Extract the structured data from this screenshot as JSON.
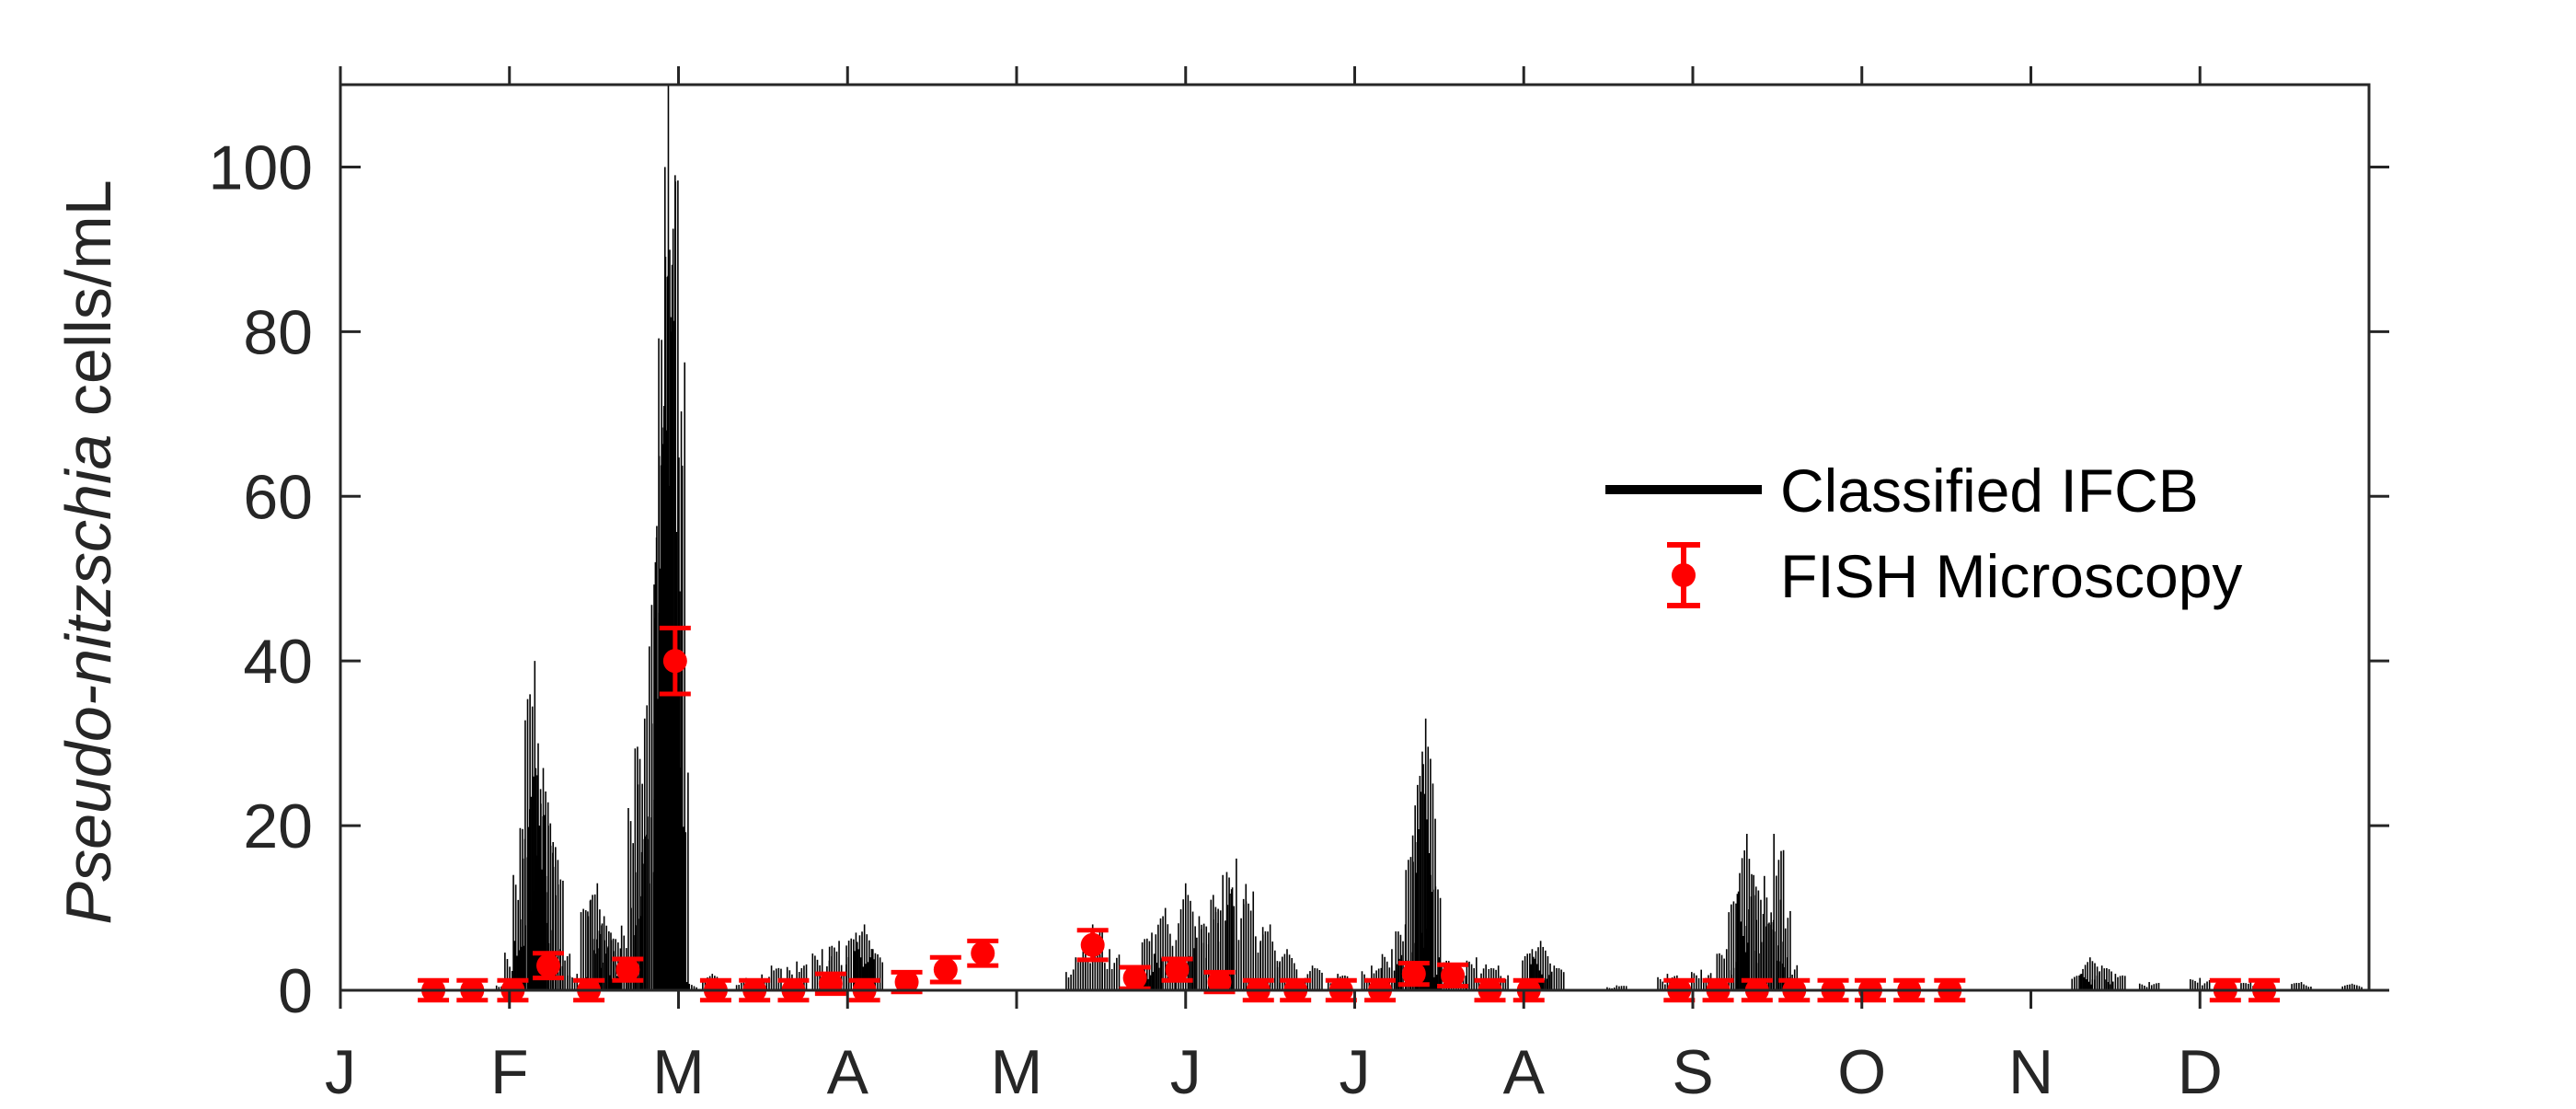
{
  "colors": {
    "ifcb": "#000000",
    "fish": "#ff0000",
    "axis": "#262626",
    "background": "#ffffff"
  },
  "chart_data": {
    "type": "line",
    "title": "",
    "xlabel": "",
    "ylabel_italic": "Pseudo-nitzschia",
    "ylabel_rest": " cells/mL",
    "x_unit": "month of year",
    "xlim": [
      0,
      12
    ],
    "ylim": [
      0,
      110
    ],
    "x_ticks": [
      {
        "pos": 0,
        "label": "J"
      },
      {
        "pos": 1,
        "label": "F"
      },
      {
        "pos": 2,
        "label": "M"
      },
      {
        "pos": 3,
        "label": "A"
      },
      {
        "pos": 4,
        "label": "M"
      },
      {
        "pos": 5,
        "label": "J"
      },
      {
        "pos": 6,
        "label": "J"
      },
      {
        "pos": 7,
        "label": "A"
      },
      {
        "pos": 8,
        "label": "S"
      },
      {
        "pos": 9,
        "label": "O"
      },
      {
        "pos": 10,
        "label": "N"
      },
      {
        "pos": 11,
        "label": "D"
      }
    ],
    "y_ticks": [
      0,
      20,
      40,
      60,
      80,
      100
    ],
    "grid": false,
    "legend": {
      "position": "right-center",
      "entries": [
        {
          "label": "Classified IFCB",
          "style": "line"
        },
        {
          "label": "FISH Microscopy",
          "style": "errorbar-marker"
        }
      ]
    },
    "series": [
      {
        "name": "Classified IFCB",
        "kind": "spikes",
        "peaks": [
          {
            "x": 0.98,
            "y": 1
          },
          {
            "x": 1.03,
            "y": 6
          },
          {
            "x": 1.08,
            "y": 16
          },
          {
            "x": 1.12,
            "y": 22
          },
          {
            "x": 1.15,
            "y": 40
          },
          {
            "x": 1.17,
            "y": 30
          },
          {
            "x": 1.2,
            "y": 27
          },
          {
            "x": 1.23,
            "y": 20
          },
          {
            "x": 1.26,
            "y": 15
          },
          {
            "x": 1.3,
            "y": 5
          },
          {
            "x": 1.4,
            "y": 2
          },
          {
            "x": 1.48,
            "y": 11
          },
          {
            "x": 1.52,
            "y": 13
          },
          {
            "x": 1.56,
            "y": 9
          },
          {
            "x": 1.6,
            "y": 7
          },
          {
            "x": 1.65,
            "y": 3
          },
          {
            "x": 1.72,
            "y": 10
          },
          {
            "x": 1.76,
            "y": 25
          },
          {
            "x": 1.8,
            "y": 33
          },
          {
            "x": 1.84,
            "y": 21
          },
          {
            "x": 1.87,
            "y": 55
          },
          {
            "x": 1.9,
            "y": 79
          },
          {
            "x": 1.92,
            "y": 100
          },
          {
            "x": 1.94,
            "y": 110
          },
          {
            "x": 1.96,
            "y": 80
          },
          {
            "x": 1.98,
            "y": 99
          },
          {
            "x": 2.0,
            "y": 45
          },
          {
            "x": 2.05,
            "y": 1
          },
          {
            "x": 2.2,
            "y": 2
          },
          {
            "x": 2.4,
            "y": 1.5
          },
          {
            "x": 2.55,
            "y": 3
          },
          {
            "x": 2.7,
            "y": 3.5
          },
          {
            "x": 2.85,
            "y": 5
          },
          {
            "x": 2.95,
            "y": 6
          },
          {
            "x": 3.05,
            "y": 7
          },
          {
            "x": 3.1,
            "y": 8
          },
          {
            "x": 3.15,
            "y": 5
          },
          {
            "x": 4.35,
            "y": 4
          },
          {
            "x": 4.45,
            "y": 8
          },
          {
            "x": 4.55,
            "y": 5
          },
          {
            "x": 4.75,
            "y": 3
          },
          {
            "x": 4.8,
            "y": 7
          },
          {
            "x": 4.88,
            "y": 10
          },
          {
            "x": 5.0,
            "y": 13
          },
          {
            "x": 5.08,
            "y": 9
          },
          {
            "x": 5.15,
            "y": 11
          },
          {
            "x": 5.22,
            "y": 14
          },
          {
            "x": 5.3,
            "y": 16
          },
          {
            "x": 5.4,
            "y": 12
          },
          {
            "x": 5.5,
            "y": 8
          },
          {
            "x": 5.6,
            "y": 5
          },
          {
            "x": 5.75,
            "y": 3
          },
          {
            "x": 5.9,
            "y": 2
          },
          {
            "x": 6.1,
            "y": 3
          },
          {
            "x": 6.22,
            "y": 5
          },
          {
            "x": 6.3,
            "y": 8
          },
          {
            "x": 6.36,
            "y": 18
          },
          {
            "x": 6.4,
            "y": 29
          },
          {
            "x": 6.42,
            "y": 33
          },
          {
            "x": 6.45,
            "y": 14
          },
          {
            "x": 6.5,
            "y": 4
          },
          {
            "x": 6.6,
            "y": 2
          },
          {
            "x": 6.72,
            "y": 4
          },
          {
            "x": 6.85,
            "y": 3
          },
          {
            "x": 7.05,
            "y": 5
          },
          {
            "x": 7.1,
            "y": 6
          },
          {
            "x": 7.18,
            "y": 3
          },
          {
            "x": 7.55,
            "y": 0.6
          },
          {
            "x": 7.85,
            "y": 2
          },
          {
            "x": 8.05,
            "y": 2.5
          },
          {
            "x": 8.2,
            "y": 5
          },
          {
            "x": 8.27,
            "y": 12
          },
          {
            "x": 8.32,
            "y": 19
          },
          {
            "x": 8.36,
            "y": 14
          },
          {
            "x": 8.42,
            "y": 9
          },
          {
            "x": 8.48,
            "y": 19
          },
          {
            "x": 8.52,
            "y": 11
          },
          {
            "x": 8.56,
            "y": 4
          },
          {
            "x": 8.6,
            "y": 1
          },
          {
            "x": 10.3,
            "y": 2
          },
          {
            "x": 10.35,
            "y": 4
          },
          {
            "x": 10.42,
            "y": 3
          },
          {
            "x": 10.5,
            "y": 2
          },
          {
            "x": 10.7,
            "y": 1
          },
          {
            "x": 11.0,
            "y": 1.5
          },
          {
            "x": 11.3,
            "y": 1
          },
          {
            "x": 11.6,
            "y": 1
          },
          {
            "x": 11.9,
            "y": 0.8
          }
        ]
      },
      {
        "name": "FISH Microscopy",
        "kind": "errorbar",
        "points": [
          {
            "x": 0.55,
            "y": 0,
            "err": 1.2
          },
          {
            "x": 0.78,
            "y": 0,
            "err": 1.2
          },
          {
            "x": 1.02,
            "y": 0,
            "err": 1.2
          },
          {
            "x": 1.23,
            "y": 3,
            "err": 1.5
          },
          {
            "x": 1.47,
            "y": 0,
            "err": 1.2
          },
          {
            "x": 1.7,
            "y": 2.5,
            "err": 1.3
          },
          {
            "x": 1.98,
            "y": 40,
            "err": 4
          },
          {
            "x": 2.22,
            "y": 0,
            "err": 1.2
          },
          {
            "x": 2.45,
            "y": 0,
            "err": 1.2
          },
          {
            "x": 2.68,
            "y": 0,
            "err": 1.2
          },
          {
            "x": 2.9,
            "y": 0.8,
            "err": 1.2
          },
          {
            "x": 3.1,
            "y": 0,
            "err": 1.2
          },
          {
            "x": 3.35,
            "y": 1,
            "err": 1.2
          },
          {
            "x": 3.58,
            "y": 2.5,
            "err": 1.5
          },
          {
            "x": 3.8,
            "y": 4.5,
            "err": 1.5
          },
          {
            "x": 4.45,
            "y": 5.5,
            "err": 1.8
          },
          {
            "x": 4.7,
            "y": 1.5,
            "err": 1.3
          },
          {
            "x": 4.95,
            "y": 2.5,
            "err": 1.3
          },
          {
            "x": 5.2,
            "y": 1,
            "err": 1.2
          },
          {
            "x": 5.43,
            "y": 0,
            "err": 1.2
          },
          {
            "x": 5.65,
            "y": 0,
            "err": 1.2
          },
          {
            "x": 5.92,
            "y": 0,
            "err": 1.2
          },
          {
            "x": 6.15,
            "y": 0,
            "err": 1.2
          },
          {
            "x": 6.35,
            "y": 2,
            "err": 1.3
          },
          {
            "x": 6.58,
            "y": 1.8,
            "err": 1.3
          },
          {
            "x": 6.8,
            "y": 0,
            "err": 1.2
          },
          {
            "x": 7.03,
            "y": 0,
            "err": 1.2
          },
          {
            "x": 7.92,
            "y": 0,
            "err": 1.2
          },
          {
            "x": 8.15,
            "y": 0,
            "err": 1.2
          },
          {
            "x": 8.38,
            "y": 0,
            "err": 1.2
          },
          {
            "x": 8.6,
            "y": 0,
            "err": 1.2
          },
          {
            "x": 8.83,
            "y": 0,
            "err": 1.2
          },
          {
            "x": 9.05,
            "y": 0,
            "err": 1.2
          },
          {
            "x": 9.28,
            "y": 0,
            "err": 1.2
          },
          {
            "x": 9.52,
            "y": 0,
            "err": 1.2
          },
          {
            "x": 11.15,
            "y": 0,
            "err": 1.2
          },
          {
            "x": 11.38,
            "y": 0,
            "err": 1.2
          }
        ]
      }
    ]
  }
}
